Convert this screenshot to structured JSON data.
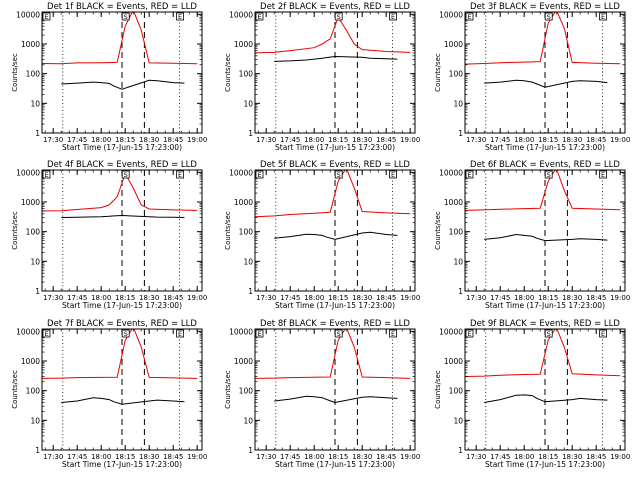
{
  "figure": {
    "y_axis_label": "Counts/sec",
    "x_axis_label": "Start Time (17-Jun-15 17:23:00)",
    "x_tick_labels": [
      "17:30",
      "17:45",
      "18:00",
      "18:15",
      "18:30",
      "18:45",
      "19:00"
    ],
    "y_tick_labels": [
      "1",
      "10",
      "100",
      "1000",
      "10000"
    ],
    "marker_letters": [
      "E",
      "S",
      "E"
    ],
    "colors": {
      "events": "#000000",
      "lld": "#ee0000",
      "axes": "#000000"
    }
  },
  "chart_data": [
    {
      "type": "line",
      "title": "Det 1f BLACK = Events, RED = LLD",
      "xlabel": "Start Time (17-Jun-15 17:23:00)",
      "ylabel": "Counts/sec",
      "x_range": [
        "17:23",
        "19:03"
      ],
      "ylim": [
        1,
        12000
      ],
      "yscale": "log",
      "grid": false,
      "vertical_lines": [
        {
          "time": "17:36",
          "style": "dotted"
        },
        {
          "time": "18:13",
          "style": "dashed"
        },
        {
          "time": "18:27",
          "style": "dashed"
        },
        {
          "time": "18:49",
          "style": "dotted"
        }
      ],
      "series": [
        {
          "name": "Events",
          "x": [
            "17:35",
            "17:45",
            "17:55",
            "18:00",
            "18:05",
            "18:08",
            "18:13",
            "18:30",
            "18:35",
            "18:45",
            "18:52"
          ],
          "y": [
            45,
            48,
            52,
            50,
            47,
            38,
            30,
            60,
            58,
            50,
            48
          ]
        },
        {
          "name": "LLD",
          "x": [
            "17:23",
            "17:35",
            "17:45",
            "18:00",
            "18:10",
            "18:15",
            "18:20",
            "18:25",
            "18:30",
            "18:45",
            "19:00"
          ],
          "y": [
            220,
            215,
            230,
            235,
            240,
            4000,
            14000,
            3000,
            230,
            225,
            215
          ]
        }
      ]
    },
    {
      "type": "line",
      "title": "Det 2f BLACK = Events, RED = LLD",
      "xlabel": "Start Time (17-Jun-15 17:23:00)",
      "ylabel": "Counts/sec",
      "x_range": [
        "17:23",
        "19:03"
      ],
      "ylim": [
        1,
        12000
      ],
      "yscale": "log",
      "grid": false,
      "vertical_lines": [
        {
          "time": "17:36",
          "style": "dotted"
        },
        {
          "time": "18:13",
          "style": "dashed"
        },
        {
          "time": "18:27",
          "style": "dashed"
        },
        {
          "time": "18:49",
          "style": "dotted"
        }
      ],
      "series": [
        {
          "name": "Events",
          "x": [
            "17:35",
            "17:45",
            "17:55",
            "18:00",
            "18:05",
            "18:08",
            "18:13",
            "18:30",
            "18:35",
            "18:45",
            "18:52"
          ],
          "y": [
            260,
            270,
            290,
            310,
            330,
            350,
            380,
            360,
            330,
            320,
            310
          ]
        },
        {
          "name": "LLD",
          "x": [
            "17:23",
            "17:35",
            "17:45",
            "18:00",
            "18:05",
            "18:10",
            "18:15",
            "18:20",
            "18:25",
            "18:30",
            "18:45",
            "19:00"
          ],
          "y": [
            500,
            520,
            600,
            750,
            1000,
            1500,
            8000,
            3000,
            1000,
            650,
            560,
            520
          ]
        }
      ]
    },
    {
      "type": "line",
      "title": "Det 3f BLACK = Events, RED = LLD",
      "xlabel": "Start Time (17-Jun-15 17:23:00)",
      "ylabel": "Counts/sec",
      "x_range": [
        "17:23",
        "19:03"
      ],
      "ylim": [
        1,
        12000
      ],
      "yscale": "log",
      "grid": false,
      "vertical_lines": [
        {
          "time": "17:36",
          "style": "dotted"
        },
        {
          "time": "18:13",
          "style": "dashed"
        },
        {
          "time": "18:27",
          "style": "dashed"
        },
        {
          "time": "18:49",
          "style": "dotted"
        }
      ],
      "series": [
        {
          "name": "Events",
          "x": [
            "17:35",
            "17:45",
            "17:55",
            "18:00",
            "18:05",
            "18:08",
            "18:13",
            "18:30",
            "18:35",
            "18:45",
            "18:52"
          ],
          "y": [
            48,
            52,
            60,
            58,
            52,
            45,
            35,
            55,
            58,
            55,
            50
          ]
        },
        {
          "name": "LLD",
          "x": [
            "17:23",
            "17:35",
            "17:45",
            "18:00",
            "18:10",
            "18:15",
            "18:20",
            "18:25",
            "18:30",
            "18:45",
            "19:00"
          ],
          "y": [
            210,
            220,
            235,
            245,
            255,
            5000,
            14000,
            3500,
            240,
            225,
            215
          ]
        }
      ]
    },
    {
      "type": "line",
      "title": "Det 4f BLACK = Events, RED = LLD",
      "xlabel": "Start Time (17-Jun-15 17:23:00)",
      "ylabel": "Counts/sec",
      "x_range": [
        "17:23",
        "19:03"
      ],
      "ylim": [
        1,
        12000
      ],
      "yscale": "log",
      "grid": false,
      "vertical_lines": [
        {
          "time": "17:36",
          "style": "dotted"
        },
        {
          "time": "18:13",
          "style": "dashed"
        },
        {
          "time": "18:27",
          "style": "dashed"
        },
        {
          "time": "18:49",
          "style": "dotted"
        }
      ],
      "series": [
        {
          "name": "Events",
          "x": [
            "17:35",
            "17:45",
            "17:55",
            "18:00",
            "18:05",
            "18:08",
            "18:13",
            "18:30",
            "18:35",
            "18:45",
            "18:52"
          ],
          "y": [
            300,
            305,
            315,
            320,
            330,
            340,
            350,
            320,
            310,
            305,
            300
          ]
        },
        {
          "name": "LLD",
          "x": [
            "17:23",
            "17:35",
            "17:45",
            "18:00",
            "18:05",
            "18:10",
            "18:15",
            "18:20",
            "18:25",
            "18:30",
            "18:45",
            "19:00"
          ],
          "y": [
            500,
            510,
            560,
            650,
            800,
            1500,
            9000,
            3000,
            800,
            580,
            540,
            520
          ]
        }
      ]
    },
    {
      "type": "line",
      "title": "Det 5f BLACK = Events, RED = LLD",
      "xlabel": "Start Time (17-Jun-15 17:23:00)",
      "ylabel": "Counts/sec",
      "x_range": [
        "17:23",
        "19:03"
      ],
      "ylim": [
        1,
        12000
      ],
      "yscale": "log",
      "grid": false,
      "vertical_lines": [
        {
          "time": "17:36",
          "style": "dotted"
        },
        {
          "time": "18:13",
          "style": "dashed"
        },
        {
          "time": "18:27",
          "style": "dashed"
        },
        {
          "time": "18:49",
          "style": "dotted"
        }
      ],
      "series": [
        {
          "name": "Events",
          "x": [
            "17:35",
            "17:45",
            "17:55",
            "18:00",
            "18:05",
            "18:08",
            "18:13",
            "18:30",
            "18:35",
            "18:45",
            "18:52"
          ],
          "y": [
            60,
            68,
            82,
            80,
            75,
            65,
            55,
            90,
            95,
            80,
            75
          ]
        },
        {
          "name": "LLD",
          "x": [
            "17:23",
            "17:35",
            "17:45",
            "18:00",
            "18:10",
            "18:15",
            "18:20",
            "18:25",
            "18:30",
            "18:45",
            "19:00"
          ],
          "y": [
            320,
            340,
            380,
            420,
            450,
            5000,
            14000,
            3000,
            480,
            430,
            400
          ]
        }
      ]
    },
    {
      "type": "line",
      "title": "Det 6f BLACK = Events, RED = LLD",
      "xlabel": "Start Time (17-Jun-15 17:23:00)",
      "ylabel": "Counts/sec",
      "x_range": [
        "17:23",
        "19:03"
      ],
      "ylim": [
        1,
        12000
      ],
      "yscale": "log",
      "grid": false,
      "vertical_lines": [
        {
          "time": "17:36",
          "style": "dotted"
        },
        {
          "time": "18:13",
          "style": "dashed"
        },
        {
          "time": "18:27",
          "style": "dashed"
        },
        {
          "time": "18:49",
          "style": "dotted"
        }
      ],
      "series": [
        {
          "name": "Events",
          "x": [
            "17:35",
            "17:45",
            "17:55",
            "18:00",
            "18:05",
            "18:08",
            "18:13",
            "18:30",
            "18:35",
            "18:45",
            "18:52"
          ],
          "y": [
            55,
            62,
            80,
            75,
            70,
            60,
            50,
            55,
            58,
            55,
            52
          ]
        },
        {
          "name": "LLD",
          "x": [
            "17:23",
            "17:35",
            "17:45",
            "18:00",
            "18:10",
            "18:15",
            "18:20",
            "18:25",
            "18:30",
            "18:45",
            "19:00"
          ],
          "y": [
            520,
            540,
            570,
            600,
            620,
            5000,
            14000,
            2500,
            620,
            580,
            550
          ]
        }
      ]
    },
    {
      "type": "line",
      "title": "Det 7f BLACK = Events, RED = LLD",
      "xlabel": "Start Time (17-Jun-15 17:23:00)",
      "ylabel": "Counts/sec",
      "x_range": [
        "17:23",
        "19:03"
      ],
      "ylim": [
        1,
        12000
      ],
      "yscale": "log",
      "grid": false,
      "vertical_lines": [
        {
          "time": "17:36",
          "style": "dotted"
        },
        {
          "time": "18:13",
          "style": "dashed"
        },
        {
          "time": "18:27",
          "style": "dashed"
        },
        {
          "time": "18:49",
          "style": "dotted"
        }
      ],
      "series": [
        {
          "name": "Events",
          "x": [
            "17:35",
            "17:45",
            "17:55",
            "18:00",
            "18:05",
            "18:08",
            "18:13",
            "18:30",
            "18:35",
            "18:45",
            "18:52"
          ],
          "y": [
            40,
            45,
            58,
            55,
            50,
            42,
            35,
            45,
            48,
            45,
            42
          ]
        },
        {
          "name": "LLD",
          "x": [
            "17:23",
            "17:35",
            "17:45",
            "18:00",
            "18:10",
            "18:15",
            "18:20",
            "18:25",
            "18:30",
            "18:45",
            "19:00"
          ],
          "y": [
            260,
            265,
            275,
            280,
            285,
            5000,
            14000,
            3000,
            280,
            270,
            260
          ]
        }
      ]
    },
    {
      "type": "line",
      "title": "Det 8f BLACK = Events, RED = LLD",
      "xlabel": "Start Time (17-Jun-15 17:23:00)",
      "ylabel": "Counts/sec",
      "x_range": [
        "17:23",
        "19:03"
      ],
      "ylim": [
        1,
        12000
      ],
      "yscale": "log",
      "grid": false,
      "vertical_lines": [
        {
          "time": "17:36",
          "style": "dotted"
        },
        {
          "time": "18:13",
          "style": "dashed"
        },
        {
          "time": "18:27",
          "style": "dashed"
        },
        {
          "time": "18:49",
          "style": "dotted"
        }
      ],
      "series": [
        {
          "name": "Events",
          "x": [
            "17:35",
            "17:45",
            "17:55",
            "18:00",
            "18:05",
            "18:08",
            "18:13",
            "18:30",
            "18:35",
            "18:45",
            "18:52"
          ],
          "y": [
            45,
            52,
            65,
            62,
            58,
            50,
            40,
            60,
            62,
            58,
            55
          ]
        },
        {
          "name": "LLD",
          "x": [
            "17:23",
            "17:35",
            "17:45",
            "18:00",
            "18:10",
            "18:15",
            "18:20",
            "18:25",
            "18:30",
            "18:45",
            "19:00"
          ],
          "y": [
            260,
            265,
            275,
            285,
            290,
            5000,
            14000,
            3000,
            290,
            275,
            260
          ]
        }
      ]
    },
    {
      "type": "line",
      "title": "Det 9f BLACK = Events, RED = LLD",
      "xlabel": "Start Time (17-Jun-15 17:23:00)",
      "ylabel": "Counts/sec",
      "x_range": [
        "17:23",
        "19:03"
      ],
      "ylim": [
        1,
        12000
      ],
      "yscale": "log",
      "grid": false,
      "vertical_lines": [
        {
          "time": "17:36",
          "style": "dotted"
        },
        {
          "time": "18:13",
          "style": "dashed"
        },
        {
          "time": "18:27",
          "style": "dashed"
        },
        {
          "time": "18:49",
          "style": "dotted"
        }
      ],
      "series": [
        {
          "name": "Events",
          "x": [
            "17:35",
            "17:45",
            "17:55",
            "18:00",
            "18:05",
            "18:08",
            "18:13",
            "18:30",
            "18:35",
            "18:45",
            "18:52"
          ],
          "y": [
            40,
            50,
            70,
            72,
            68,
            55,
            42,
            50,
            55,
            50,
            48
          ]
        },
        {
          "name": "LLD",
          "x": [
            "17:23",
            "17:35",
            "17:45",
            "18:00",
            "18:10",
            "18:15",
            "18:20",
            "18:25",
            "18:30",
            "18:45",
            "19:00"
          ],
          "y": [
            300,
            310,
            330,
            350,
            360,
            5000,
            14000,
            3000,
            370,
            340,
            320
          ]
        }
      ]
    }
  ]
}
